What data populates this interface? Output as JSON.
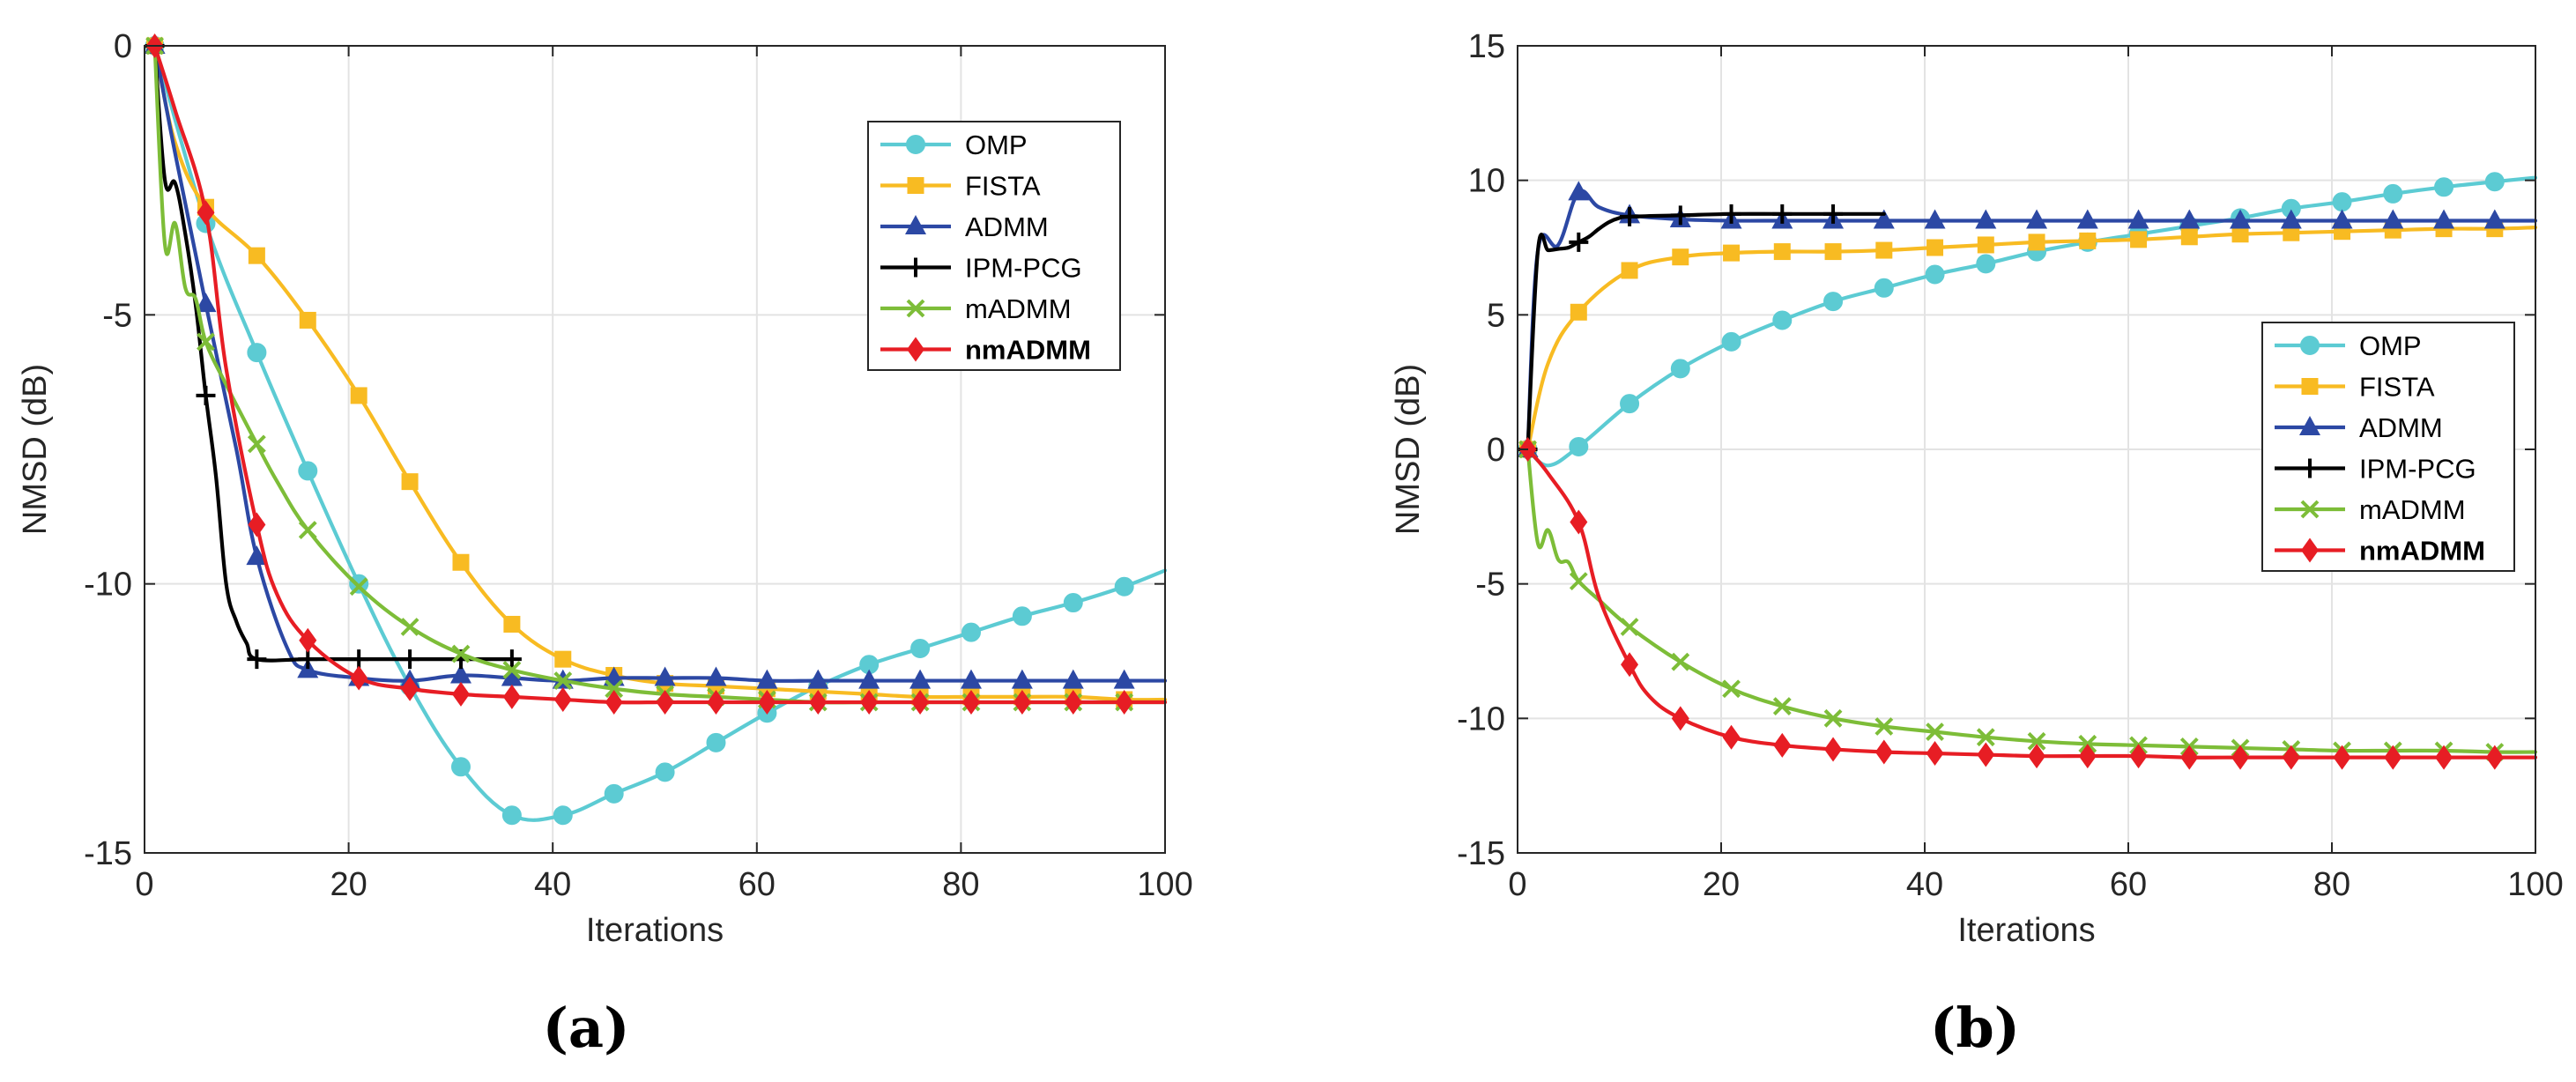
{
  "colors": {
    "OMP": "#5ccbd3",
    "FISTA": "#f8bb22",
    "ADMM": "#2c48a4",
    "IPM-PCG": "#000000",
    "mADMM": "#7dbd38",
    "nmADMM": "#e71d24"
  },
  "chart_data": [
    {
      "type": "line",
      "caption": "(a)",
      "xlabel": "Iterations",
      "ylabel": "NMSD (dB)",
      "xlim": [
        0,
        100
      ],
      "ylim": [
        -15,
        0
      ],
      "xticks": [
        0,
        20,
        40,
        60,
        80,
        100
      ],
      "yticks": [
        0,
        -5,
        -10,
        -15
      ],
      "grid": true,
      "legend_position": "top-right",
      "series": [
        {
          "name": "OMP",
          "bold": false,
          "marker": "circle",
          "x": [
            1,
            6,
            11,
            16,
            21,
            26,
            31,
            36,
            41,
            46,
            51,
            56,
            61,
            66,
            71,
            76,
            81,
            86,
            91,
            96,
            100
          ],
          "y": [
            0,
            -3.3,
            -5.7,
            -7.9,
            -10.0,
            -11.9,
            -13.4,
            -14.3,
            -14.3,
            -13.9,
            -13.5,
            -12.95,
            -12.4,
            -11.9,
            -11.5,
            -11.2,
            -10.9,
            -10.6,
            -10.35,
            -10.05,
            -9.75
          ],
          "marker_idx": [
            0,
            1,
            2,
            3,
            4,
            5,
            6,
            7,
            8,
            9,
            10,
            11,
            12,
            13,
            14,
            15,
            16,
            17,
            18,
            19
          ]
        },
        {
          "name": "FISTA",
          "bold": false,
          "marker": "square",
          "x": [
            1,
            3,
            6,
            11,
            16,
            21,
            26,
            31,
            36,
            41,
            46,
            51,
            56,
            61,
            66,
            71,
            76,
            81,
            86,
            91,
            96,
            100
          ],
          "y": [
            0,
            -1.8,
            -3.0,
            -3.9,
            -5.1,
            -6.5,
            -8.1,
            -9.6,
            -10.75,
            -11.4,
            -11.7,
            -11.85,
            -11.9,
            -11.95,
            -12.0,
            -12.05,
            -12.1,
            -12.1,
            -12.1,
            -12.1,
            -12.15,
            -12.15
          ],
          "marker_idx": [
            0,
            2,
            3,
            4,
            5,
            6,
            7,
            8,
            9,
            10,
            11,
            12,
            13,
            14,
            15,
            16,
            17,
            18,
            19,
            20
          ]
        },
        {
          "name": "ADMM",
          "bold": false,
          "marker": "triangle",
          "x": [
            1,
            3,
            6,
            9,
            11,
            14,
            16,
            21,
            26,
            31,
            36,
            41,
            46,
            51,
            56,
            61,
            66,
            71,
            76,
            81,
            86,
            91,
            96,
            100
          ],
          "y": [
            0,
            -2.0,
            -4.8,
            -7.5,
            -9.5,
            -11.2,
            -11.6,
            -11.75,
            -11.8,
            -11.7,
            -11.75,
            -11.8,
            -11.75,
            -11.75,
            -11.75,
            -11.8,
            -11.8,
            -11.8,
            -11.8,
            -11.8,
            -11.8,
            -11.8,
            -11.8,
            -11.8
          ],
          "marker_idx": [
            0,
            2,
            4,
            6,
            7,
            8,
            9,
            10,
            11,
            12,
            13,
            14,
            15,
            16,
            17,
            18,
            19,
            20,
            21,
            22
          ]
        },
        {
          "name": "IPM-PCG",
          "bold": false,
          "marker": "plus",
          "x": [
            1,
            2,
            3,
            4,
            5,
            6,
            7,
            8,
            9,
            10,
            11,
            16,
            21,
            26,
            31,
            36
          ],
          "y": [
            0,
            -2.5,
            -2.55,
            -3.5,
            -4.8,
            -6.5,
            -8.0,
            -10.0,
            -10.7,
            -11.1,
            -11.4,
            -11.4,
            -11.4,
            -11.4,
            -11.4,
            -11.4
          ],
          "marker_idx": [
            0,
            5,
            10,
            11,
            12,
            13,
            14,
            15
          ]
        },
        {
          "name": "mADMM",
          "bold": false,
          "marker": "x",
          "x": [
            1,
            2,
            3,
            4,
            5,
            6,
            8,
            11,
            13,
            16,
            21,
            26,
            31,
            36,
            41,
            46,
            51,
            56,
            61,
            66,
            71,
            76,
            81,
            86,
            91,
            96,
            100
          ],
          "y": [
            0,
            -3.7,
            -3.3,
            -4.5,
            -4.7,
            -5.5,
            -6.3,
            -7.4,
            -8.1,
            -9.0,
            -10.05,
            -10.8,
            -11.3,
            -11.6,
            -11.8,
            -11.95,
            -12.05,
            -12.1,
            -12.15,
            -12.2,
            -12.2,
            -12.2,
            -12.2,
            -12.2,
            -12.2,
            -12.2,
            -12.2
          ],
          "marker_idx": [
            0,
            5,
            7,
            9,
            10,
            11,
            12,
            13,
            14,
            15,
            16,
            17,
            18,
            19,
            20,
            21,
            22,
            23,
            24,
            25
          ]
        },
        {
          "name": "nmADMM",
          "bold": true,
          "marker": "diamond",
          "x": [
            1,
            3,
            6,
            8,
            11,
            13,
            16,
            21,
            26,
            31,
            36,
            41,
            46,
            51,
            56,
            61,
            66,
            71,
            76,
            81,
            86,
            91,
            96,
            100
          ],
          "y": [
            0,
            -1.2,
            -3.1,
            -6.0,
            -8.9,
            -10.2,
            -11.05,
            -11.75,
            -11.95,
            -12.05,
            -12.1,
            -12.15,
            -12.2,
            -12.2,
            -12.2,
            -12.2,
            -12.2,
            -12.2,
            -12.2,
            -12.2,
            -12.2,
            -12.2,
            -12.2,
            -12.2
          ],
          "marker_idx": [
            0,
            2,
            4,
            6,
            7,
            8,
            9,
            10,
            11,
            12,
            13,
            14,
            15,
            16,
            17,
            18,
            19,
            20,
            21,
            22
          ]
        }
      ]
    },
    {
      "type": "line",
      "caption": "(b)",
      "xlabel": "Iterations",
      "ylabel": "NMSD (dB)",
      "xlim": [
        0,
        100
      ],
      "ylim": [
        -15,
        15
      ],
      "xticks": [
        0,
        20,
        40,
        60,
        80,
        100
      ],
      "yticks": [
        15,
        10,
        5,
        0,
        -5,
        -10,
        -15
      ],
      "grid": true,
      "legend_position": "right",
      "series": [
        {
          "name": "OMP",
          "bold": false,
          "marker": "circle",
          "x": [
            1,
            3,
            6,
            11,
            16,
            21,
            26,
            31,
            36,
            41,
            46,
            51,
            56,
            61,
            66,
            71,
            76,
            81,
            86,
            91,
            96,
            100
          ],
          "y": [
            0,
            -0.6,
            0.1,
            1.7,
            3.0,
            4.0,
            4.8,
            5.5,
            6.0,
            6.5,
            6.9,
            7.35,
            7.7,
            8.0,
            8.3,
            8.6,
            8.95,
            9.2,
            9.5,
            9.75,
            9.95,
            10.1
          ],
          "marker_idx": [
            0,
            2,
            3,
            4,
            5,
            6,
            7,
            8,
            9,
            10,
            11,
            12,
            13,
            14,
            15,
            16,
            17,
            18,
            19,
            20
          ]
        },
        {
          "name": "FISTA",
          "bold": false,
          "marker": "square",
          "x": [
            1,
            3,
            6,
            11,
            16,
            21,
            26,
            31,
            36,
            41,
            46,
            51,
            56,
            61,
            66,
            71,
            76,
            81,
            86,
            91,
            96,
            100
          ],
          "y": [
            0,
            3.2,
            5.1,
            6.65,
            7.15,
            7.3,
            7.35,
            7.35,
            7.4,
            7.5,
            7.6,
            7.7,
            7.75,
            7.8,
            7.9,
            8.0,
            8.05,
            8.1,
            8.15,
            8.2,
            8.2,
            8.25
          ],
          "marker_idx": [
            0,
            2,
            3,
            4,
            5,
            6,
            7,
            8,
            9,
            10,
            11,
            12,
            13,
            14,
            15,
            16,
            17,
            18,
            19,
            20
          ]
        },
        {
          "name": "ADMM",
          "bold": false,
          "marker": "triangle",
          "x": [
            1,
            2,
            4,
            6,
            8,
            11,
            16,
            21,
            26,
            31,
            36,
            41,
            46,
            51,
            56,
            61,
            66,
            71,
            76,
            81,
            86,
            91,
            96,
            100
          ],
          "y": [
            0,
            7.4,
            7.6,
            9.55,
            9.0,
            8.7,
            8.55,
            8.5,
            8.5,
            8.5,
            8.5,
            8.5,
            8.5,
            8.5,
            8.5,
            8.5,
            8.5,
            8.5,
            8.5,
            8.5,
            8.5,
            8.5,
            8.5,
            8.5
          ],
          "marker_idx": [
            0,
            3,
            5,
            6,
            7,
            8,
            9,
            10,
            11,
            12,
            13,
            14,
            15,
            16,
            17,
            18,
            19,
            20,
            21,
            22
          ]
        },
        {
          "name": "IPM-PCG",
          "bold": false,
          "marker": "plus",
          "x": [
            1,
            2,
            3,
            4,
            5,
            6,
            7,
            8,
            9,
            10,
            11,
            16,
            21,
            26,
            31,
            36
          ],
          "y": [
            0,
            7.4,
            7.4,
            7.45,
            7.5,
            7.7,
            7.9,
            8.2,
            8.45,
            8.6,
            8.65,
            8.7,
            8.75,
            8.75,
            8.75,
            8.75
          ],
          "marker_idx": [
            0,
            5,
            10,
            11,
            12,
            13,
            14
          ]
        },
        {
          "name": "mADMM",
          "bold": false,
          "marker": "x",
          "x": [
            1,
            2,
            3,
            4,
            5,
            6,
            8,
            11,
            16,
            21,
            26,
            31,
            36,
            41,
            46,
            51,
            56,
            61,
            66,
            71,
            76,
            81,
            86,
            91,
            96,
            100
          ],
          "y": [
            0,
            -3.5,
            -3.0,
            -4.1,
            -4.2,
            -4.9,
            -5.6,
            -6.6,
            -7.9,
            -8.9,
            -9.55,
            -10.0,
            -10.3,
            -10.5,
            -10.7,
            -10.85,
            -10.95,
            -11.0,
            -11.05,
            -11.1,
            -11.15,
            -11.2,
            -11.2,
            -11.2,
            -11.25,
            -11.25
          ],
          "marker_idx": [
            0,
            5,
            7,
            8,
            9,
            10,
            11,
            12,
            13,
            14,
            15,
            16,
            17,
            18,
            19,
            20,
            21,
            22,
            23,
            24
          ]
        },
        {
          "name": "nmADMM",
          "bold": true,
          "marker": "diamond",
          "x": [
            1,
            3,
            6,
            8,
            11,
            13,
            16,
            21,
            26,
            31,
            36,
            41,
            46,
            51,
            56,
            61,
            66,
            71,
            76,
            81,
            86,
            91,
            96,
            100
          ],
          "y": [
            0,
            -0.9,
            -2.7,
            -5.5,
            -8.0,
            -9.2,
            -10.0,
            -10.7,
            -11.0,
            -11.15,
            -11.25,
            -11.3,
            -11.35,
            -11.4,
            -11.4,
            -11.4,
            -11.45,
            -11.45,
            -11.45,
            -11.45,
            -11.45,
            -11.45,
            -11.45,
            -11.45
          ],
          "marker_idx": [
            0,
            2,
            4,
            6,
            7,
            8,
            9,
            10,
            11,
            12,
            13,
            14,
            15,
            16,
            17,
            18,
            19,
            20,
            21,
            22
          ]
        }
      ]
    }
  ]
}
